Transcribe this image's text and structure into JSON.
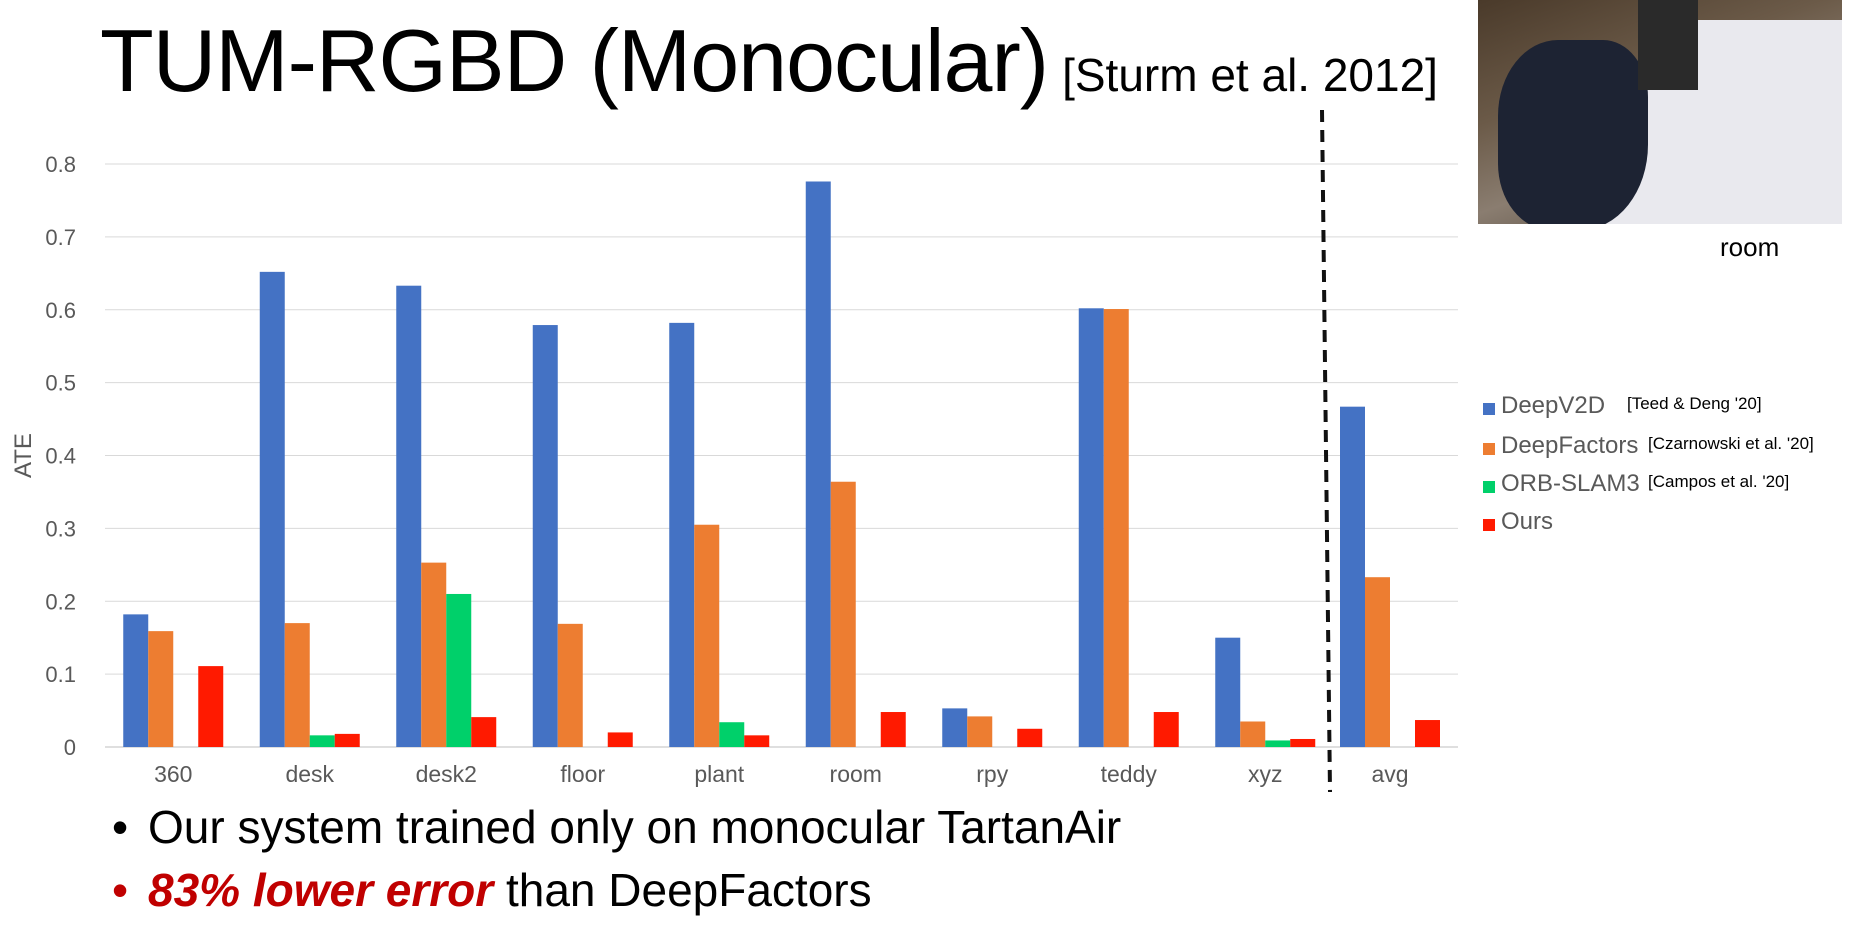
{
  "slide": {
    "title": "TUM-RGBD (Monocular)",
    "title_citation": "[Sturm et al. 2012]",
    "thumbnail_caption": "room",
    "bullets": [
      {
        "text": "Our system trained only on monocular TartanAir"
      },
      {
        "emphasis": "83% lower error",
        "text": " than DeepFactors",
        "emphasis_color": "#c00000"
      }
    ]
  },
  "legend": [
    {
      "name": "DeepV2D",
      "citation": "[Teed & Deng '20]"
    },
    {
      "name": "DeepFactors",
      "citation": "[Czarnowski et al. '20]"
    },
    {
      "name": "ORB-SLAM3",
      "citation": "[Campos et al. '20]"
    },
    {
      "name": "Ours",
      "citation": ""
    }
  ],
  "chart_data": {
    "type": "bar",
    "ylabel": "ATE",
    "xlabel": "",
    "ylim": [
      0,
      0.8
    ],
    "yticks": [
      0,
      0.1,
      0.2,
      0.3,
      0.4,
      0.5,
      0.6,
      0.7,
      0.8
    ],
    "ytick_labels": [
      "0",
      "0.1",
      "0.2",
      "0.3",
      "0.4",
      "0.5",
      "0.6",
      "0.7",
      "0.8"
    ],
    "grid": true,
    "legend_position": "right",
    "categories": [
      "360",
      "desk",
      "desk2",
      "floor",
      "plant",
      "room",
      "rpy",
      "teddy",
      "xyz"
    ],
    "series": [
      {
        "name": "DeepV2D",
        "color": "#4472c4",
        "values": [
          0.182,
          0.652,
          0.633,
          0.579,
          0.582,
          0.776,
          0.053,
          0.602,
          0.15
        ]
      },
      {
        "name": "DeepFactors",
        "color": "#ed7d31",
        "values": [
          0.159,
          0.17,
          0.253,
          0.169,
          0.305,
          0.364,
          0.042,
          0.601,
          0.035
        ]
      },
      {
        "name": "ORB-SLAM3",
        "color": "#00d06a",
        "values": [
          null,
          0.016,
          0.21,
          null,
          0.034,
          null,
          null,
          null,
          0.009
        ]
      },
      {
        "name": "Ours",
        "color": "#ff1a00",
        "values": [
          0.111,
          0.018,
          0.041,
          0.02,
          0.016,
          0.048,
          0.025,
          0.048,
          0.011
        ]
      }
    ],
    "separate_category": {
      "label": "avg",
      "values": [
        0.467,
        0.233,
        null,
        0.037
      ],
      "separated_by": "dashed vertical line"
    }
  }
}
